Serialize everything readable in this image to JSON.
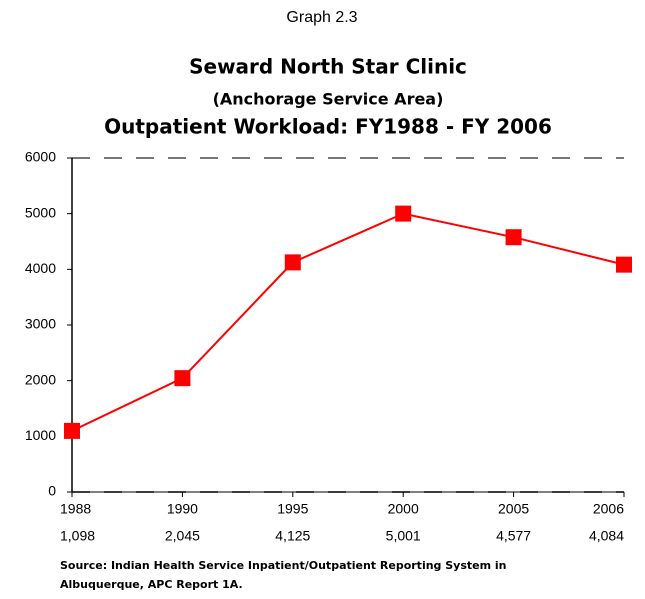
{
  "header": "Graph 2.3",
  "chart_data": {
    "type": "line",
    "title": "Seward North Star Clinic",
    "subtitle": "(Anchorage Service Area)",
    "title2": "Outpatient Workload: FY1988 - FY 2006",
    "categories": [
      "1988",
      "1990",
      "1995",
      "2000",
      "2005",
      "2006"
    ],
    "values": [
      1098,
      2045,
      4125,
      5001,
      4577,
      4084
    ],
    "value_labels": [
      "1,098",
      "2,045",
      "4,125",
      "5,001",
      "4,577",
      "4,084"
    ],
    "color": "#ff0000",
    "ylim": [
      0,
      6000
    ],
    "yticks": [
      0,
      1000,
      2000,
      3000,
      4000,
      5000,
      6000
    ],
    "source": [
      "Source:  Indian Health Service Inpatient/Outpatient Reporting System in",
      "Albuquerque, APC Report 1A."
    ]
  }
}
